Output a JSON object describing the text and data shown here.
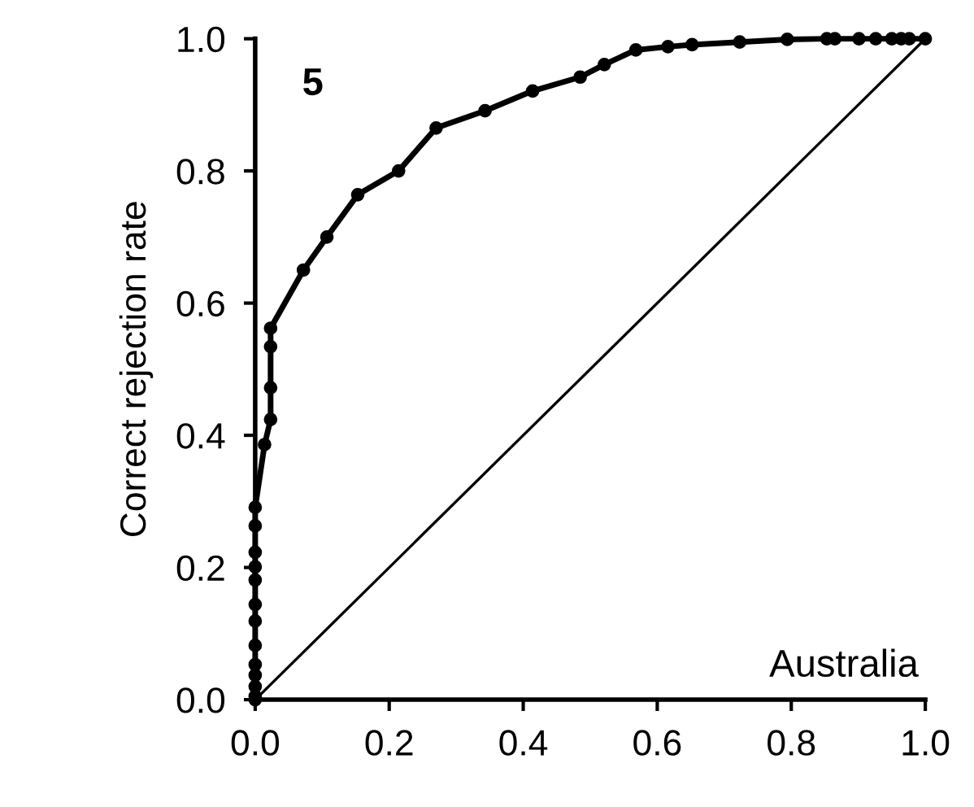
{
  "chart_data": {
    "type": "line",
    "ylabel": "Correct rejection rate",
    "annotations": [
      "5",
      "Australia"
    ],
    "xlim": [
      0,
      1
    ],
    "ylim": [
      0,
      1
    ],
    "xticks": [
      {
        "value": 0,
        "label": "0.0"
      },
      0.2,
      0.4,
      0.6,
      0.8,
      {
        "value": 1,
        "label": "1.0"
      }
    ],
    "yticks": [
      {
        "value": 0,
        "label": "0.0"
      },
      0.2,
      0.4,
      0.6,
      0.8,
      {
        "value": 1,
        "label": "1.0"
      }
    ],
    "grid": false,
    "legend": false,
    "marker": "circle",
    "line_style": "solid",
    "series": [
      {
        "color": "#000000",
        "x": [
          0,
          0,
          0,
          0,
          0,
          0,
          0,
          0,
          0,
          0,
          0,
          0,
          0,
          0.014,
          0.023,
          0.023,
          0.023,
          0.023,
          0.072,
          0.107,
          0.153,
          0.214,
          0.27,
          0.343,
          0.414,
          0.485,
          0.521,
          0.568,
          0.616,
          0.652,
          0.723,
          0.794,
          0.853,
          0.865,
          0.901,
          0.926,
          0.95,
          0.964,
          0.976,
          1.0
        ],
        "values": [
          0,
          0.005,
          0.02,
          0.037,
          0.053,
          0.082,
          0.119,
          0.144,
          0.181,
          0.201,
          0.223,
          0.263,
          0.291,
          0.386,
          0.424,
          0.472,
          0.534,
          0.562,
          0.65,
          0.7,
          0.764,
          0.8,
          0.865,
          0.891,
          0.921,
          0.942,
          0.961,
          0.983,
          0.988,
          0.991,
          0.995,
          0.999,
          1.0,
          1.0,
          1.0,
          1.0,
          1.0,
          1.0,
          1.0,
          1.0
        ]
      },
      {
        "color": "#000000",
        "marker": "none",
        "x": [
          0,
          1
        ],
        "values": [
          0,
          1
        ]
      }
    ]
  }
}
